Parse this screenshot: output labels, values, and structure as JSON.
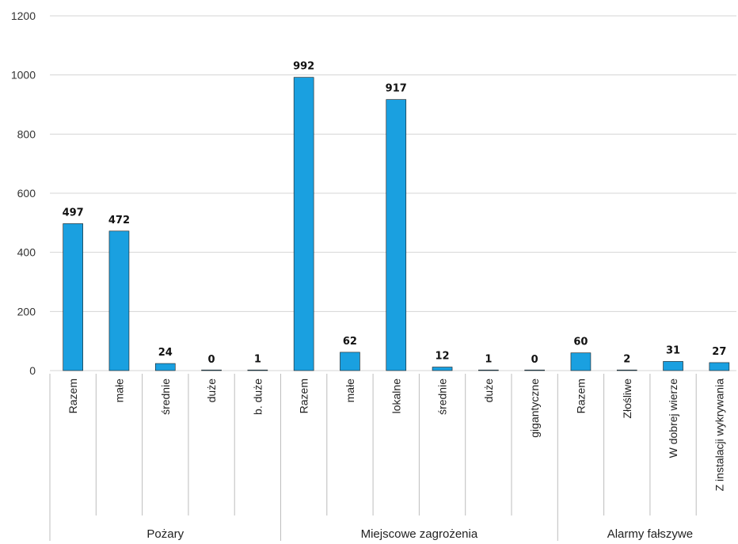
{
  "chart_data": {
    "type": "bar",
    "title": "",
    "xlabel": "",
    "ylabel": "",
    "ylim": [
      0,
      1200
    ],
    "yticks": [
      0,
      200,
      400,
      600,
      800,
      1000,
      1200
    ],
    "grid": true,
    "bar_color": "#1aa0e0",
    "categories": [
      "Razem",
      "małe",
      "średnie",
      "duże",
      "b. duże",
      "Razem",
      "małe",
      "lokalne",
      "średnie",
      "duże",
      "gigantyczne",
      "Razem",
      "Złośliwe",
      "W dobrej wierze",
      "Z instalacji wykrywania"
    ],
    "values": [
      497,
      472,
      24,
      0,
      1,
      992,
      62,
      917,
      12,
      1,
      0,
      60,
      2,
      31,
      27
    ],
    "groups": [
      {
        "label": "Pożary",
        "start": 0,
        "count": 5
      },
      {
        "label": "Miejscowe zagrożenia",
        "start": 5,
        "count": 6
      },
      {
        "label": "Alarmy fałszywe",
        "start": 11,
        "count": 4
      }
    ]
  }
}
